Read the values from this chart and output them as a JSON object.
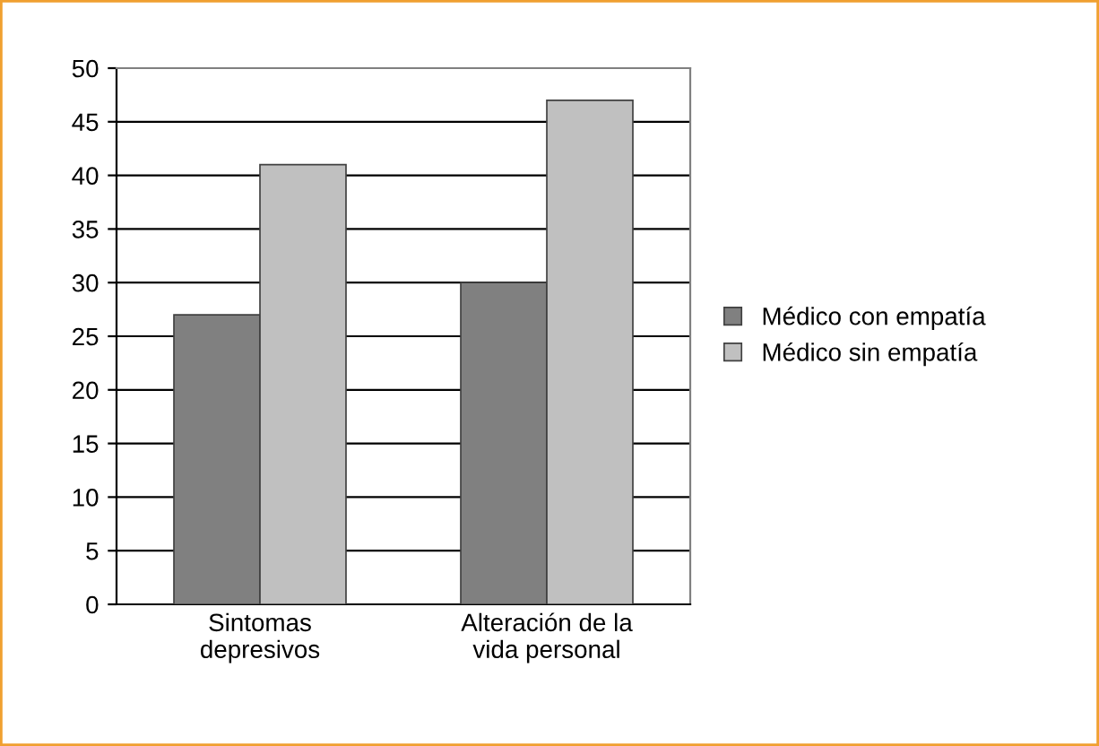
{
  "chart_data": {
    "type": "bar",
    "categories": [
      "Sintomas\ndepresivos",
      "Alteración de la\nvida personal"
    ],
    "series": [
      {
        "name": "Médico con empatía",
        "color": "#808080",
        "values": [
          27,
          30
        ]
      },
      {
        "name": "Médico sin empatía",
        "color": "#c0c0c0",
        "values": [
          41,
          47
        ]
      }
    ],
    "ylim": [
      0,
      50
    ],
    "yticks": [
      0,
      5,
      10,
      15,
      20,
      25,
      30,
      35,
      40,
      45,
      50
    ],
    "grid": "y",
    "legend": "right"
  }
}
